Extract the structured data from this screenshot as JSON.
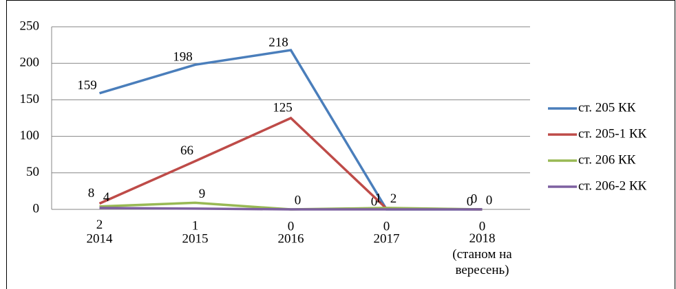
{
  "chart_data": {
    "type": "line",
    "categories": [
      "2014",
      "2015",
      "2016",
      "2017",
      "2018\n(станом на\nвересень)"
    ],
    "series": [
      {
        "name": "ст. 205 КК",
        "color": "#4a7ebb",
        "values": [
          159,
          198,
          218,
          0,
          0
        ]
      },
      {
        "name": "ст. 205-1 КК",
        "color": "#be4b48",
        "values": [
          8,
          66,
          125,
          1,
          0
        ]
      },
      {
        "name": "ст. 206 КК",
        "color": "#98b954",
        "values": [
          4,
          9,
          0,
          2,
          0
        ]
      },
      {
        "name": "ст. 206-2 КК",
        "color": "#7d60a0",
        "values": [
          2,
          1,
          0,
          0,
          0
        ]
      }
    ],
    "ylim": [
      0,
      250
    ],
    "yticks": [
      0,
      50,
      100,
      150,
      200,
      250
    ],
    "grid": true,
    "legend": "right"
  }
}
